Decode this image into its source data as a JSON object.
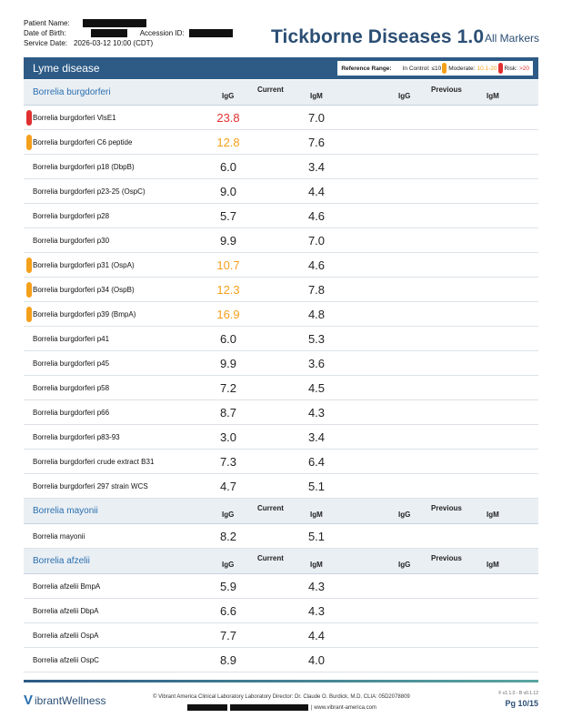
{
  "patient": {
    "name_label": "Patient Name:",
    "dob_label": "Date of Birth:",
    "accession_label": "Accession ID:",
    "service_label": "Service Date:",
    "service_value": "2026-03-12 10:00 (CDT)"
  },
  "report": {
    "title": "Tickborne Diseases 1.0",
    "subtitle": "All Markers"
  },
  "section": {
    "title": "Lyme disease"
  },
  "legend": {
    "label": "Reference Range:",
    "in_control": "In Control: ≤10",
    "moderate_label": "Moderate:",
    "moderate_value": "10.1-20",
    "risk_label": "Risk:",
    "risk_value": ">20",
    "colors": {
      "moderate": "#f5a01b",
      "risk": "#e03030"
    }
  },
  "columns": {
    "current": "Current",
    "previous": "Previous",
    "igg": "IgG",
    "igm": "IgM"
  },
  "groups": [
    {
      "name": "Borrelia burgdorferi",
      "rows": [
        {
          "name": "Borrelia burgdorferi VlsE1",
          "igg": "23.8",
          "igm": "7.0",
          "flag": "risk"
        },
        {
          "name": "Borrelia burgdorferi C6 peptide",
          "igg": "12.8",
          "igm": "7.6",
          "flag": "moderate"
        },
        {
          "name": "Borrelia burgdorferi p18 (DbpB)",
          "igg": "6.0",
          "igm": "3.4",
          "flag": ""
        },
        {
          "name": "Borrelia burgdorferi p23-25 (OspC)",
          "igg": "9.0",
          "igm": "4.4",
          "flag": ""
        },
        {
          "name": "Borrelia burgdorferi p28",
          "igg": "5.7",
          "igm": "4.6",
          "flag": ""
        },
        {
          "name": "Borrelia burgdorferi p30",
          "igg": "9.9",
          "igm": "7.0",
          "flag": ""
        },
        {
          "name": "Borrelia burgdorferi p31 (OspA)",
          "igg": "10.7",
          "igm": "4.6",
          "flag": "moderate"
        },
        {
          "name": "Borrelia burgdorferi p34 (OspB)",
          "igg": "12.3",
          "igm": "7.8",
          "flag": "moderate"
        },
        {
          "name": "Borrelia burgdorferi p39 (BmpA)",
          "igg": "16.9",
          "igm": "4.8",
          "flag": "moderate"
        },
        {
          "name": "Borrelia burgdorferi p41",
          "igg": "6.0",
          "igm": "5.3",
          "flag": ""
        },
        {
          "name": "Borrelia burgdorferi p45",
          "igg": "9.9",
          "igm": "3.6",
          "flag": ""
        },
        {
          "name": "Borrelia burgdorferi p58",
          "igg": "7.2",
          "igm": "4.5",
          "flag": ""
        },
        {
          "name": "Borrelia burgdorferi p66",
          "igg": "8.7",
          "igm": "4.3",
          "flag": ""
        },
        {
          "name": "Borrelia burgdorferi p83-93",
          "igg": "3.0",
          "igm": "3.4",
          "flag": ""
        },
        {
          "name": "Borrelia burgdorferi crude extract B31",
          "igg": "7.3",
          "igm": "6.4",
          "flag": ""
        },
        {
          "name": "Borrelia burgdorferi 297 strain WCS",
          "igg": "4.7",
          "igm": "5.1",
          "flag": ""
        }
      ]
    },
    {
      "name": "Borrelia mayonii",
      "rows": [
        {
          "name": "Borrelia mayonii",
          "igg": "8.2",
          "igm": "5.1",
          "flag": ""
        }
      ]
    },
    {
      "name": "Borrelia afzelii",
      "rows": [
        {
          "name": "Borrelia afzelii BmpA",
          "igg": "5.9",
          "igm": "4.3",
          "flag": ""
        },
        {
          "name": "Borrelia afzelii DbpA",
          "igg": "6.6",
          "igm": "4.3",
          "flag": ""
        },
        {
          "name": "Borrelia afzelii OspA",
          "igg": "7.7",
          "igm": "4.4",
          "flag": ""
        },
        {
          "name": "Borrelia afzelii OspC",
          "igg": "8.9",
          "igm": "4.0",
          "flag": ""
        }
      ]
    }
  ],
  "footer": {
    "brand_v": "V",
    "brand_rest": "ibrantWellness",
    "lab_info": "© Vibrant America Clinical Laboratory Laboratory Director: Dr. Claude O. Burdick, M.D. CLIA: 05D2078809",
    "website": "| www.vibrant-america.com",
    "version": "F v1.1.0 - B v0.1.12",
    "page": "Pg 10/15"
  }
}
